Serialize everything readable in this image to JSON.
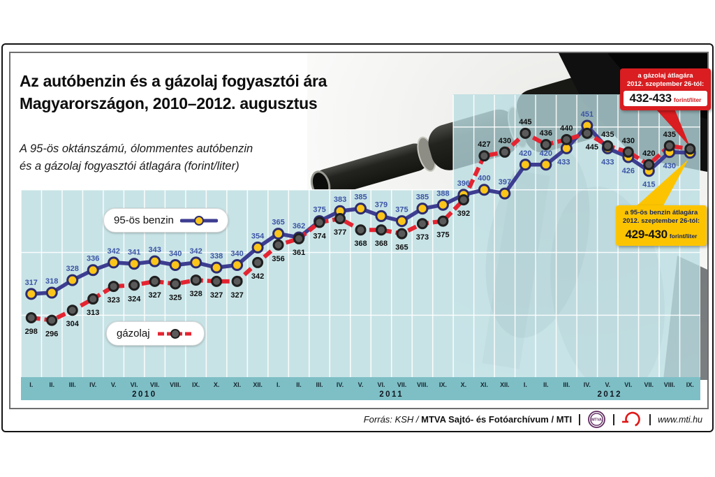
{
  "title": {
    "line1": "Az autóbenzin és a gázolaj fogyasztói ára",
    "line2": "Magyarországon, 2010–2012. augusztus"
  },
  "subtitle": {
    "line1": "A 95-ös oktánszámú, ólommentes autóbenzin",
    "line2": "és a gázolaj fogyasztói átlagára (forint/liter)"
  },
  "legend": {
    "benzin_label": "95-ös benzin",
    "gazolaj_label": "gázolaj"
  },
  "callouts": {
    "diesel": {
      "line1": "a gázolaj átlagára",
      "line2": "2012. szeptember 26-tól:",
      "value": "432-433",
      "unit": "forint/liter"
    },
    "petrol": {
      "line1": "a 95-ös benzin átlagára",
      "line2": "2012. szeptember 26-tól:",
      "value": "429-430",
      "unit": "forint/liter"
    }
  },
  "footer": {
    "source_prefix": "Forrás: KSH /",
    "source_bold": "MTVA Sajtó- és Fotóarchívum",
    "source_suffix": "/ MTI",
    "website": "www.mti.hu",
    "logos": [
      "mtva-logo",
      "mti-logo"
    ]
  },
  "chart_data": {
    "type": "line",
    "title": "Az autóbenzin és a gázolaj fogyasztói ára Magyarországon, 2010–2012. augusztus",
    "ylabel": "forint/liter",
    "ylim": [
      255,
      480
    ],
    "gridlines_y": [
      300,
      350,
      400,
      450
    ],
    "grid": true,
    "legend_position": "inside",
    "years": [
      {
        "label": "2010",
        "months": [
          "I.",
          "II.",
          "III.",
          "IV.",
          "V.",
          "VI.",
          "VII.",
          "VIII.",
          "IX.",
          "X.",
          "XI.",
          "XII."
        ]
      },
      {
        "label": "2011",
        "months": [
          "I.",
          "II.",
          "III.",
          "IV.",
          "V.",
          "VI.",
          "VII.",
          "VIII.",
          "IX.",
          "X.",
          "XI.",
          "XII."
        ]
      },
      {
        "label": "2012",
        "months": [
          "I.",
          "II.",
          "III.",
          "IV.",
          "V.",
          "VI.",
          "VII.",
          "VIII.",
          "IX."
        ]
      }
    ],
    "series": [
      {
        "name": "95-ös benzin",
        "line_color": "#3d3d91",
        "dot_color": "#fbc51a",
        "dot_stroke": "#2c2c6e",
        "label_color": "#3b55a5",
        "dashed": false,
        "values": [
          317,
          318,
          328,
          336,
          342,
          341,
          343,
          340,
          342,
          338,
          340,
          354,
          365,
          362,
          375,
          383,
          385,
          379,
          375,
          385,
          388,
          396,
          400,
          397,
          420,
          420,
          433,
          451,
          433,
          426,
          415,
          430,
          null
        ],
        "final_value": 429.5
      },
      {
        "name": "gázolaj",
        "line_color": "#e42431",
        "dot_color": "#5a5a5a",
        "dot_stroke": "#1f1f1f",
        "label_color": "#0d0d0d",
        "dashed": true,
        "values": [
          298,
          296,
          304,
          313,
          323,
          324,
          327,
          325,
          328,
          327,
          327,
          342,
          356,
          361,
          374,
          377,
          368,
          368,
          365,
          373,
          375,
          392,
          427,
          430,
          445,
          436,
          440,
          445,
          435,
          430,
          420,
          435,
          null
        ],
        "final_value": 432.5
      }
    ]
  },
  "colors": {
    "plot_bg": "#c8e3e6",
    "plot_bg_translucent": "rgba(184,220,225,0.78)",
    "axis_band": "#7ebfc6",
    "gridline": "#ffffff",
    "callout_red": "#d91d20",
    "callout_yellow": "#fcc400"
  }
}
